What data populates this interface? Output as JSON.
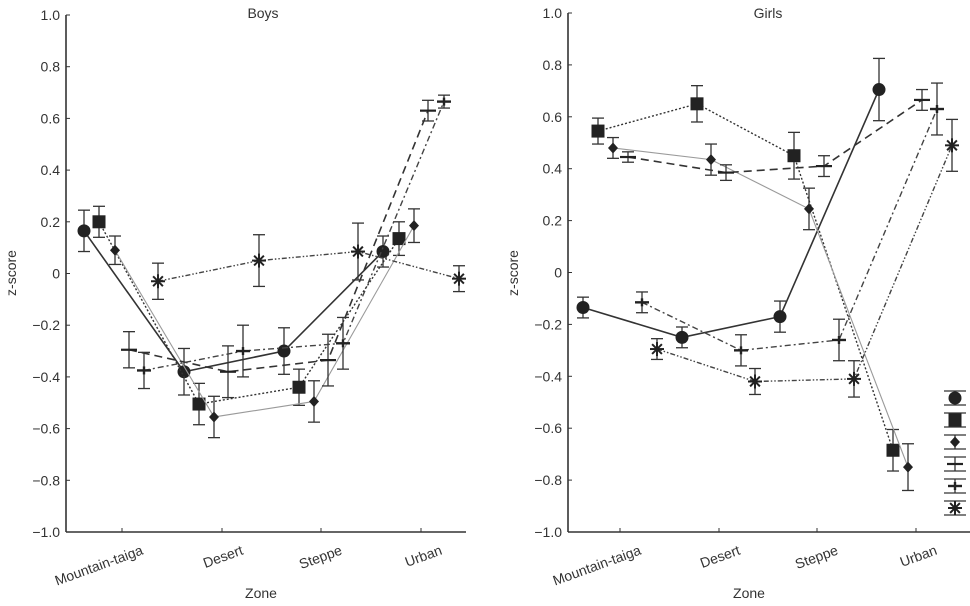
{
  "chart_data": [
    {
      "type": "line",
      "title": "Boys",
      "xlabel": "Zone",
      "ylabel": "z-score",
      "categories": [
        "Mountain-taiga",
        "Desert",
        "Steppe",
        "Urban"
      ],
      "ylim": [
        -1.0,
        1.0
      ],
      "yticks": [
        "1.0",
        "0.8",
        "0.6",
        "0.4",
        "0.2",
        "0",
        "−0.2",
        "−0.4",
        "−0.6",
        "−0.8",
        "−1.0"
      ],
      "ytick_values": [
        1.0,
        0.8,
        0.6,
        0.4,
        0.2,
        0,
        -0.2,
        -0.4,
        -0.6,
        -0.8,
        -1.0
      ],
      "grid": false,
      "legend": "none",
      "series": [
        {
          "name": "circle",
          "marker": "circle",
          "line": "solid",
          "values": [
            0.165,
            -0.38,
            -0.3,
            0.085
          ],
          "errors": [
            0.08,
            0.09,
            0.09,
            0.06
          ]
        },
        {
          "name": "square",
          "marker": "square",
          "line": "dotted",
          "values": [
            0.2,
            -0.505,
            -0.44,
            0.135
          ],
          "errors": [
            0.06,
            0.08,
            0.07,
            0.065
          ]
        },
        {
          "name": "diamond",
          "marker": "diamond",
          "line": "thin-gray",
          "values": [
            0.09,
            -0.555,
            -0.495,
            0.185
          ],
          "errors": [
            0.055,
            0.08,
            0.08,
            0.065
          ]
        },
        {
          "name": "plus-dashed",
          "marker": "hline",
          "line": "dashed",
          "values": [
            -0.295,
            -0.38,
            -0.335,
            0.63
          ],
          "errors": [
            0.07,
            0.1,
            0.1,
            0.04
          ]
        },
        {
          "name": "plus-dashdot",
          "marker": "plus",
          "line": "dashdot",
          "values": [
            -0.375,
            -0.3,
            -0.27,
            0.665
          ],
          "errors": [
            0.07,
            0.1,
            0.1,
            0.025
          ]
        },
        {
          "name": "asterisk",
          "marker": "asterisk",
          "line": "dashdotdot",
          "values": [
            -0.03,
            0.05,
            0.085,
            -0.02
          ],
          "errors": [
            0.07,
            0.1,
            0.11,
            0.05
          ]
        }
      ]
    },
    {
      "type": "line",
      "title": "Girls",
      "xlabel": "Zone",
      "ylabel": "z-score",
      "categories": [
        "Mountain-taiga",
        "Desert",
        "Steppe",
        "Urban"
      ],
      "ylim": [
        -1.0,
        1.0
      ],
      "yticks": [
        "1.0",
        "0.8",
        "0.6",
        "0.4",
        "0.2",
        "0",
        "−0.2",
        "−0.4",
        "−0.6",
        "−0.8",
        "−1.0"
      ],
      "ytick_values": [
        1.0,
        0.8,
        0.6,
        0.4,
        0.2,
        0,
        -0.2,
        -0.4,
        -0.6,
        -0.8,
        -1.0
      ],
      "grid": false,
      "legend": "bottom-right",
      "series": [
        {
          "name": "circle",
          "marker": "circle",
          "line": "solid",
          "values": [
            -0.135,
            -0.25,
            -0.17,
            0.705
          ],
          "errors": [
            0.04,
            0.04,
            0.06,
            0.12
          ]
        },
        {
          "name": "square",
          "marker": "square",
          "line": "dotted",
          "values": [
            0.545,
            0.65,
            0.45,
            -0.685
          ],
          "errors": [
            0.05,
            0.07,
            0.09,
            0.08
          ]
        },
        {
          "name": "diamond",
          "marker": "diamond",
          "line": "thin-gray",
          "values": [
            0.48,
            0.435,
            0.245,
            -0.75
          ],
          "errors": [
            0.04,
            0.06,
            0.08,
            0.09
          ]
        },
        {
          "name": "plus-dashed",
          "marker": "hline",
          "line": "dashed",
          "values": [
            0.445,
            0.385,
            0.41,
            0.665
          ],
          "errors": [
            0.02,
            0.03,
            0.04,
            0.04
          ]
        },
        {
          "name": "plus-dashdot",
          "marker": "plus",
          "line": "dashdot",
          "values": [
            -0.115,
            -0.3,
            -0.26,
            0.63
          ],
          "errors": [
            0.04,
            0.06,
            0.08,
            0.1
          ]
        },
        {
          "name": "asterisk",
          "marker": "asterisk",
          "line": "dashdotdot",
          "values": [
            -0.295,
            -0.42,
            -0.41,
            0.49
          ],
          "errors": [
            0.04,
            0.05,
            0.07,
            0.1
          ]
        }
      ]
    }
  ]
}
